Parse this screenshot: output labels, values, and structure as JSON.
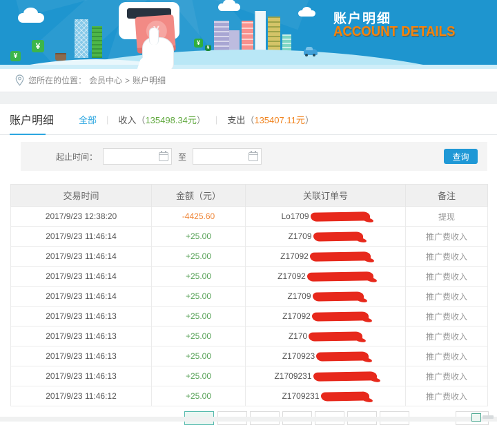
{
  "banner": {
    "title_cn": "账户明细",
    "title_en": "ACCOUNT DETAILS",
    "yen": "¥",
    "colors": {
      "sky": "#1e95cf",
      "title_orange": "#f6820a"
    }
  },
  "breadcrumb": {
    "prefix": "您所在的位置：",
    "parent": "会员中心",
    "separator": ">",
    "current": "账户明细"
  },
  "tabs": {
    "page_title": "账户明细",
    "all_label": "全部",
    "divider": "|",
    "income_label": "收入",
    "income_open": "（",
    "income_value": "135498.34元",
    "income_close": "）",
    "expense_label": "支出",
    "expense_open": "（",
    "expense_value": "135407.11元",
    "expense_close": "）"
  },
  "filter": {
    "range_label": "起止时间：",
    "to_label": "至",
    "start_value": "",
    "end_value": "",
    "search_label": "查询"
  },
  "table": {
    "headers": [
      "交易时间",
      "金额（元）",
      "关联订单号",
      "备注"
    ],
    "rows": [
      {
        "time": "2017/9/23 12:38:20",
        "amount": "-4425.60",
        "amount_type": "negative",
        "order_prefix": "Lo1709",
        "redact_w": 86,
        "remark": "提现"
      },
      {
        "time": "2017/9/23 11:46:14",
        "amount": "+25.00",
        "amount_type": "positive",
        "order_prefix": "Z1709",
        "redact_w": 72,
        "remark": "推广费收入"
      },
      {
        "time": "2017/9/23 11:46:14",
        "amount": "+25.00",
        "amount_type": "positive",
        "order_prefix": "Z17092",
        "redact_w": 88,
        "remark": "推广费收入"
      },
      {
        "time": "2017/9/23 11:46:14",
        "amount": "+25.00",
        "amount_type": "positive",
        "order_prefix": "Z17092",
        "redact_w": 96,
        "remark": "推广费收入"
      },
      {
        "time": "2017/9/23 11:46:14",
        "amount": "+25.00",
        "amount_type": "positive",
        "order_prefix": "Z1709",
        "redact_w": 74,
        "remark": "推广费收入"
      },
      {
        "time": "2017/9/23 11:46:13",
        "amount": "+25.00",
        "amount_type": "positive",
        "order_prefix": "Z17092",
        "redact_w": 82,
        "remark": "推广费收入"
      },
      {
        "time": "2017/9/23 11:46:13",
        "amount": "+25.00",
        "amount_type": "positive",
        "order_prefix": "Z170",
        "redact_w": 78,
        "remark": "推广费收入"
      },
      {
        "time": "2017/9/23 11:46:13",
        "amount": "+25.00",
        "amount_type": "positive",
        "order_prefix": "Z170923",
        "redact_w": 76,
        "remark": "推广费收入"
      },
      {
        "time": "2017/9/23 11:46:13",
        "amount": "+25.00",
        "amount_type": "positive",
        "order_prefix": "Z1709231",
        "redact_w": 92,
        "remark": "推广费收入"
      },
      {
        "time": "2017/9/23 11:46:12",
        "amount": "+25.00",
        "amount_type": "positive",
        "order_prefix": "Z1709231",
        "redact_w": 70,
        "remark": "推广费收入"
      }
    ]
  },
  "colors": {
    "accent_blue": "#2ba6e0",
    "income_green": "#61a93f",
    "expense_orange": "#f0831e",
    "amount_green": "#57a257",
    "amount_orange": "#ef8435",
    "redact_red": "#e7291c"
  }
}
